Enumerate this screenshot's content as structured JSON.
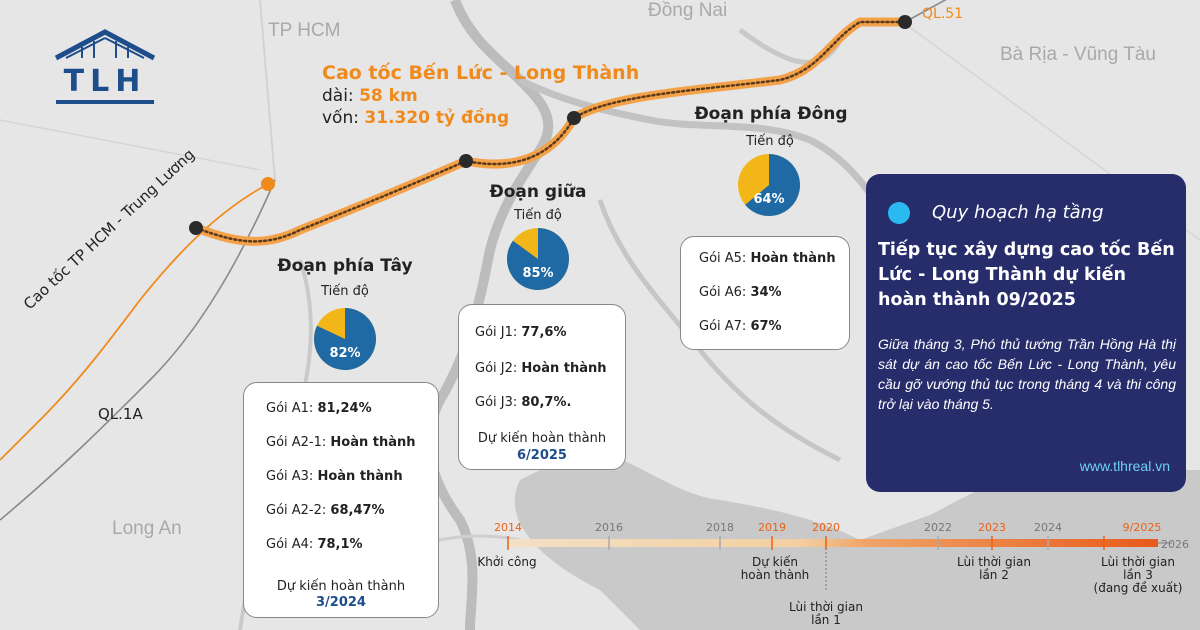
{
  "logo": {
    "text": "TLH"
  },
  "regions": {
    "tp_hcm": "TP HCM",
    "dong_nai": "Đồng Nai",
    "ba_ria_vung_tau": "Bà Rịa - Vũng Tàu",
    "long_an": "Long An"
  },
  "roads": {
    "ql51": "QL.51",
    "ql1a": "QL.1A",
    "hcm_trung_luong": "Cao tốc TP HCM - Trung Lương"
  },
  "project": {
    "title": "Cao tốc Bến Lức - Long Thành",
    "length_label": "dài: ",
    "length_value": "58 km",
    "capital_label": "vốn: ",
    "capital_value": "31.320 tỷ đồng"
  },
  "progress_label": "Tiến độ",
  "expected_label": "Dự kiến hoàn thành",
  "sections": {
    "west": {
      "name": "Đoạn phía Tây",
      "progress_pct": 82,
      "progress_text": "82%",
      "packages": [
        {
          "label": "Gói A1: ",
          "value": "81,24%"
        },
        {
          "label": "Gói A2-1: ",
          "value": "Hoàn thành"
        },
        {
          "label": "Gói A3: ",
          "value": "Hoàn thành"
        },
        {
          "label": "Gói A2-2: ",
          "value": "68,47%"
        },
        {
          "label": "Gói A4: ",
          "value": "78,1%"
        }
      ],
      "expected_date": "3/2024"
    },
    "middle": {
      "name": "Đoạn giữa",
      "progress_pct": 85,
      "progress_text": "85%",
      "packages": [
        {
          "label": "Gói J1: ",
          "value": "77,6%"
        },
        {
          "label": "Gói J2: ",
          "value": "Hoàn thành"
        },
        {
          "label": "Gói J3: ",
          "value": "80,7%."
        }
      ],
      "expected_date": "6/2025"
    },
    "east": {
      "name": "Đoạn phía Đông",
      "progress_pct": 64,
      "progress_text": "64%",
      "packages": [
        {
          "label": "Gói A5: ",
          "value": "Hoàn thành"
        },
        {
          "label": "Gói A6: ",
          "value": "34%"
        },
        {
          "label": "Gói A7: ",
          "value": "67%"
        }
      ]
    }
  },
  "panel": {
    "tag": "Quy hoạch hạ tầng",
    "headline": "Tiếp tục xây dựng cao tốc Bến Lức - Long Thành dự kiến hoàn thành 09/2025",
    "body": "Giữa tháng 3, Phó thủ tướng Trần Hồng Hà thị sát dự án cao tốc Bến Lức - Long Thành, yêu cầu gỡ vướng thủ tục trong tháng 4 và thi công trở lại vào tháng 5.",
    "website": "www.tlhreal.vn"
  },
  "timeline": {
    "years": [
      {
        "label": "2014",
        "highlight": true
      },
      {
        "label": "2016",
        "highlight": false
      },
      {
        "label": "2018",
        "highlight": false
      },
      {
        "label": "2019",
        "highlight": true
      },
      {
        "label": "2020",
        "highlight": true
      },
      {
        "label": "2022",
        "highlight": false
      },
      {
        "label": "2023",
        "highlight": true
      },
      {
        "label": "2024",
        "highlight": false
      },
      {
        "label": "9/2025",
        "highlight": true
      },
      {
        "label": "2026",
        "highlight": false
      }
    ],
    "events": [
      {
        "text": "Khởi công"
      },
      {
        "text": "Dự kiến\nhoàn thành"
      },
      {
        "text": "Lùi thời gian\nlần 1"
      },
      {
        "text": "Lùi thời gian\nlần 2"
      },
      {
        "text": "Lùi thời gian\nlần 3\n(đang đề xuất)"
      }
    ]
  },
  "colors": {
    "accent_orange": "#f08a1c",
    "pie_blue": "#1f6aa5",
    "pie_yellow": "#f2b619",
    "panel_navy": "#272d6b",
    "panel_dot": "#2bb9f2",
    "date_blue": "#1e4d8c"
  }
}
